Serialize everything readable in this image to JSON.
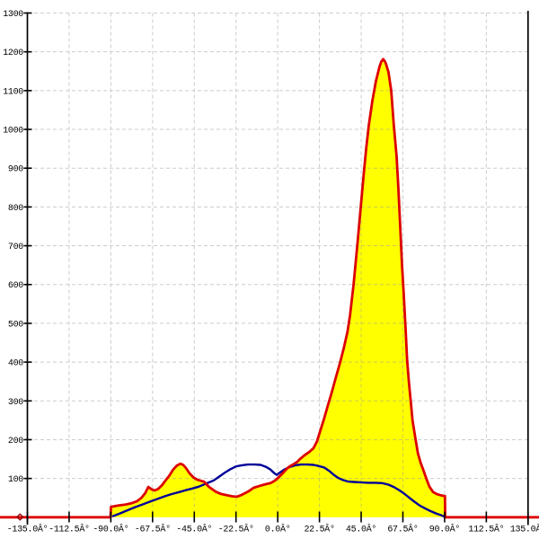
{
  "app": {
    "description": "angle distribution histogram plot"
  },
  "colors": {
    "background": "#ffffff",
    "histogram_outline": "#dd0000",
    "histogram_fill": "#ffff00",
    "overlay_line": "#000099",
    "grid": "#9a9a9a",
    "axis": "#000000",
    "labels": "#000000",
    "zero_marker": "#8b0000"
  },
  "chart_data": {
    "type": "area",
    "title": "",
    "xlabel": "",
    "ylabel": "",
    "x_axis": {
      "range_deg": [
        -135,
        135
      ],
      "tick_step_deg": 22.5,
      "ticks_deg": [
        -135,
        -112.5,
        -90,
        -67.5,
        -45,
        -22.5,
        0,
        22.5,
        45,
        67.5,
        90,
        112.5,
        135
      ],
      "tick_labels": [
        "-135.0Â°",
        "-112.5Â°",
        "-90.0Â°",
        "-67.5Â°",
        "-45.0Â°",
        "-22.5Â°",
        "0.0Â°",
        "22.5Â°",
        "45.0Â°",
        "67.5Â°",
        "90.0Â°",
        "112.5Â°",
        "135.0Â°"
      ],
      "grid": true
    },
    "y_axis": {
      "range": [
        0,
        1300
      ],
      "tick_step": 100,
      "ticks": [
        100,
        200,
        300,
        400,
        500,
        600,
        700,
        800,
        900,
        1000,
        1100,
        1200,
        1300
      ],
      "tick_labels": [
        "100",
        "200",
        "300",
        "400",
        "500",
        "600",
        "700",
        "800",
        "900",
        "1000",
        "1100",
        "1200",
        "1300"
      ],
      "zero_label_rendered_as": "diamond-marker",
      "grid": true
    },
    "legend": "none",
    "series": [
      {
        "name": "filled-histogram",
        "type": "area",
        "line_color": "#dd0000",
        "fill_color": "#ffff00",
        "data_span_deg": [
          -90,
          90
        ],
        "peak": {
          "deg": 57,
          "value": 1181
        },
        "points_deg_value": [
          [
            -149.5,
            0
          ],
          [
            -90.2,
            0
          ],
          [
            -89.9,
            27
          ],
          [
            -86,
            30
          ],
          [
            -82,
            33
          ],
          [
            -79,
            36
          ],
          [
            -76,
            41
          ],
          [
            -73.5,
            50
          ],
          [
            -71.5,
            62
          ],
          [
            -69.8,
            78
          ],
          [
            -68,
            72
          ],
          [
            -66.4,
            69
          ],
          [
            -64.5,
            73
          ],
          [
            -62.5,
            82
          ],
          [
            -60.5,
            95
          ],
          [
            -58.5,
            107
          ],
          [
            -56.5,
            122
          ],
          [
            -54.5,
            133
          ],
          [
            -52.5,
            138
          ],
          [
            -51,
            135
          ],
          [
            -49.5,
            127
          ],
          [
            -47.5,
            113
          ],
          [
            -45.5,
            103
          ],
          [
            -43.5,
            97
          ],
          [
            -41.5,
            94
          ],
          [
            -39.8,
            92
          ],
          [
            -37,
            78
          ],
          [
            -33.5,
            66
          ],
          [
            -30.5,
            60
          ],
          [
            -27.5,
            57
          ],
          [
            -24.5,
            54
          ],
          [
            -22,
            53
          ],
          [
            -19.3,
            58
          ],
          [
            -16,
            66
          ],
          [
            -13,
            76
          ],
          [
            -9.6,
            81
          ],
          [
            -6.7,
            85
          ],
          [
            -3.9,
            88
          ],
          [
            -1.4,
            95
          ],
          [
            0.5,
            103
          ],
          [
            2.4,
            112
          ],
          [
            3.9,
            120
          ],
          [
            5.3,
            127
          ],
          [
            6.7,
            132
          ],
          [
            8.7,
            137
          ],
          [
            10.6,
            143
          ],
          [
            12,
            150
          ],
          [
            14.5,
            160
          ],
          [
            16.9,
            168
          ],
          [
            19.3,
            178
          ],
          [
            21.2,
            196
          ],
          [
            23.1,
            225
          ],
          [
            25.1,
            256
          ],
          [
            27,
            288
          ],
          [
            28.9,
            318
          ],
          [
            31.3,
            360
          ],
          [
            33.7,
            400
          ],
          [
            35.7,
            437
          ],
          [
            37.6,
            478
          ],
          [
            39,
            520
          ],
          [
            40.9,
            600
          ],
          [
            42.9,
            700
          ],
          [
            44.8,
            800
          ],
          [
            46.3,
            880
          ],
          [
            47.7,
            950
          ],
          [
            49.1,
            1010
          ],
          [
            51.1,
            1075
          ],
          [
            53,
            1125
          ],
          [
            54.9,
            1162
          ],
          [
            55.9,
            1175
          ],
          [
            56.9,
            1181
          ],
          [
            57.7,
            1176
          ],
          [
            58.3,
            1170
          ],
          [
            59.7,
            1148
          ],
          [
            61.2,
            1100
          ],
          [
            62.6,
            1010
          ],
          [
            64.1,
            930
          ],
          [
            65,
            855
          ],
          [
            66,
            755
          ],
          [
            67,
            655
          ],
          [
            67.9,
            580
          ],
          [
            68.9,
            490
          ],
          [
            69.8,
            405
          ],
          [
            70.8,
            345
          ],
          [
            71.8,
            295
          ],
          [
            72.7,
            250
          ],
          [
            74.2,
            205
          ],
          [
            75.6,
            165
          ],
          [
            77.1,
            140
          ],
          [
            78.5,
            122
          ],
          [
            80.5,
            95
          ],
          [
            81.9,
            78
          ],
          [
            83.8,
            65
          ],
          [
            85.7,
            60
          ],
          [
            87.7,
            57
          ],
          [
            89.7,
            55
          ],
          [
            90.2,
            55
          ],
          [
            90.3,
            0
          ],
          [
            141,
            0
          ]
        ]
      },
      {
        "name": "overlay-curve",
        "type": "line",
        "line_color": "#000099",
        "data_span_deg": [
          -89,
          90
        ],
        "points_deg_value": [
          [
            -88.8,
            3
          ],
          [
            -85,
            10
          ],
          [
            -81,
            18
          ],
          [
            -77,
            26
          ],
          [
            -73,
            33
          ],
          [
            -69,
            40
          ],
          [
            -65,
            47
          ],
          [
            -61,
            54
          ],
          [
            -57,
            60
          ],
          [
            -53,
            65
          ],
          [
            -49.5,
            70
          ],
          [
            -46,
            74
          ],
          [
            -42.5,
            79
          ],
          [
            -40,
            84
          ],
          [
            -37.5,
            89
          ],
          [
            -34.5,
            95
          ],
          [
            -31.5,
            105
          ],
          [
            -28.5,
            115
          ],
          [
            -25.5,
            124
          ],
          [
            -22.5,
            131
          ],
          [
            -19.3,
            134
          ],
          [
            -16,
            136
          ],
          [
            -12.5,
            136
          ],
          [
            -9.2,
            135
          ],
          [
            -6.3,
            130
          ],
          [
            -3.9,
            123
          ],
          [
            -1.9,
            114
          ],
          [
            -0.5,
            109
          ],
          [
            1.4,
            116
          ],
          [
            3.9,
            124
          ],
          [
            6.7,
            130
          ],
          [
            9.6,
            134
          ],
          [
            12.5,
            136
          ],
          [
            15.9,
            136
          ],
          [
            19.3,
            135
          ],
          [
            22.2,
            132
          ],
          [
            25.1,
            128
          ],
          [
            27.9,
            119
          ],
          [
            30.3,
            109
          ],
          [
            32.8,
            101
          ],
          [
            35.2,
            96
          ],
          [
            38.1,
            92
          ],
          [
            40.9,
            91
          ],
          [
            44.8,
            90
          ],
          [
            48.7,
            89
          ],
          [
            52.5,
            89
          ],
          [
            56.4,
            88
          ],
          [
            59.7,
            84
          ],
          [
            62.6,
            78
          ],
          [
            65.5,
            70
          ],
          [
            67.9,
            62
          ],
          [
            70.8,
            51
          ],
          [
            73.7,
            40
          ],
          [
            76.6,
            30
          ],
          [
            79.5,
            23
          ],
          [
            82.4,
            16
          ],
          [
            85.3,
            10
          ],
          [
            87.7,
            6
          ],
          [
            89.7,
            2
          ]
        ]
      }
    ]
  }
}
